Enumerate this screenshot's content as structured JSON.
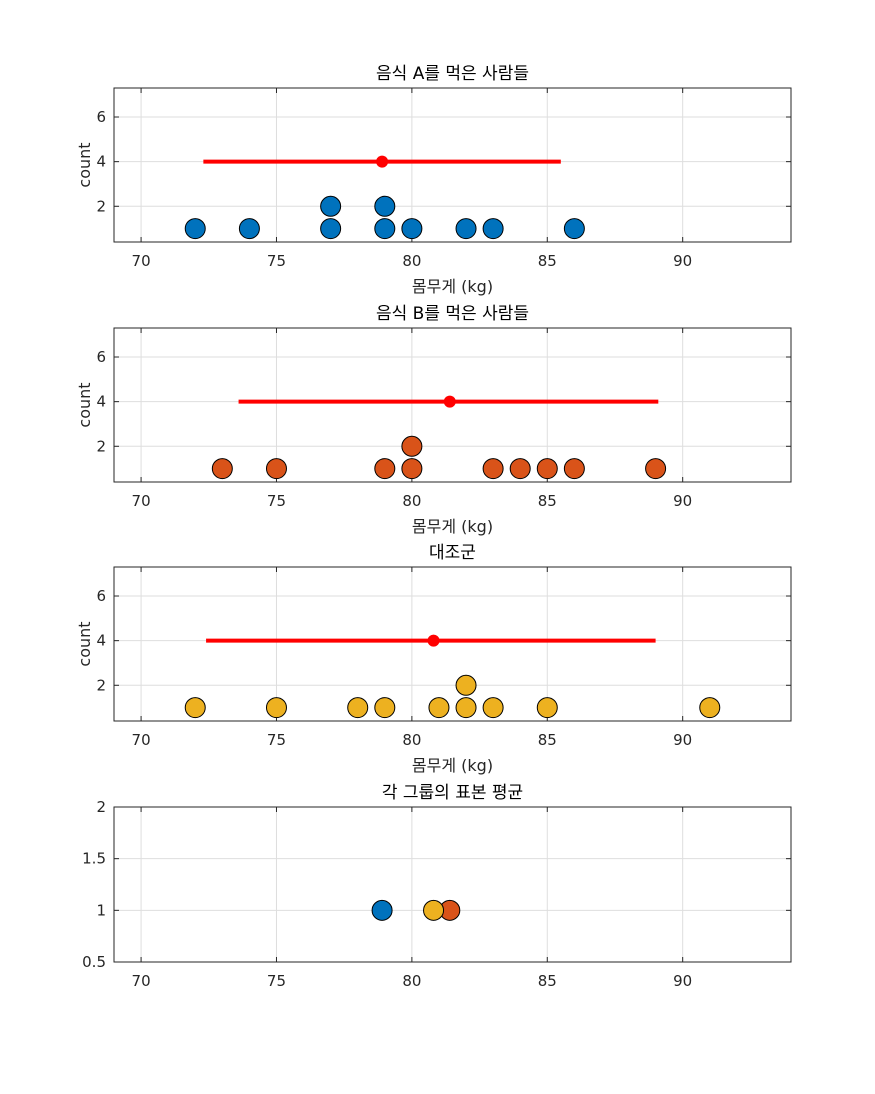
{
  "chart_data": [
    {
      "type": "scatter",
      "title": "음식 A를 먹은 사람들",
      "xlabel": "몸무게 (kg)",
      "ylabel": "count",
      "xlim": [
        69,
        94
      ],
      "ylim": [
        0.4,
        7.3
      ],
      "xticks": [
        70,
        75,
        80,
        85,
        90
      ],
      "yticks": [
        2,
        4,
        6
      ],
      "grid": true,
      "color": "#0072BD",
      "points": [
        {
          "x": 72,
          "y": 1
        },
        {
          "x": 74,
          "y": 1
        },
        {
          "x": 77,
          "y": 1
        },
        {
          "x": 77,
          "y": 2
        },
        {
          "x": 79,
          "y": 1
        },
        {
          "x": 79,
          "y": 2
        },
        {
          "x": 80,
          "y": 1
        },
        {
          "x": 82,
          "y": 1
        },
        {
          "x": 83,
          "y": 1
        },
        {
          "x": 86,
          "y": 1
        }
      ],
      "mean": 78.9,
      "interval": [
        72.3,
        85.5
      ],
      "interval_y": 4,
      "interval_color": "#FF0000"
    },
    {
      "type": "scatter",
      "title": "음식 B를 먹은 사람들",
      "xlabel": "몸무게 (kg)",
      "ylabel": "count",
      "xlim": [
        69,
        94
      ],
      "ylim": [
        0.4,
        7.3
      ],
      "xticks": [
        70,
        75,
        80,
        85,
        90
      ],
      "yticks": [
        2,
        4,
        6
      ],
      "grid": true,
      "color": "#D95319",
      "points": [
        {
          "x": 73,
          "y": 1
        },
        {
          "x": 75,
          "y": 1
        },
        {
          "x": 79,
          "y": 1
        },
        {
          "x": 80,
          "y": 1
        },
        {
          "x": 80,
          "y": 2
        },
        {
          "x": 83,
          "y": 1
        },
        {
          "x": 84,
          "y": 1
        },
        {
          "x": 85,
          "y": 1
        },
        {
          "x": 86,
          "y": 1
        },
        {
          "x": 89,
          "y": 1
        }
      ],
      "mean": 81.4,
      "interval": [
        73.6,
        89.1
      ],
      "interval_y": 4,
      "interval_color": "#FF0000"
    },
    {
      "type": "scatter",
      "title": "대조군",
      "xlabel": "몸무게 (kg)",
      "ylabel": "count",
      "xlim": [
        69,
        94
      ],
      "ylim": [
        0.4,
        7.3
      ],
      "xticks": [
        70,
        75,
        80,
        85,
        90
      ],
      "yticks": [
        2,
        4,
        6
      ],
      "grid": true,
      "color": "#EDB120",
      "points": [
        {
          "x": 72,
          "y": 1
        },
        {
          "x": 75,
          "y": 1
        },
        {
          "x": 78,
          "y": 1
        },
        {
          "x": 79,
          "y": 1
        },
        {
          "x": 81,
          "y": 1
        },
        {
          "x": 82,
          "y": 1
        },
        {
          "x": 82,
          "y": 2
        },
        {
          "x": 83,
          "y": 1
        },
        {
          "x": 85,
          "y": 1
        },
        {
          "x": 91,
          "y": 1
        }
      ],
      "mean": 80.8,
      "interval": [
        72.4,
        89.0
      ],
      "interval_y": 4,
      "interval_color": "#FF0000"
    },
    {
      "type": "scatter",
      "title": "각 그룹의 표본 평균",
      "xlabel": "",
      "ylabel": "",
      "xlim": [
        69,
        94
      ],
      "ylim": [
        0.5,
        2
      ],
      "xticks": [
        70,
        75,
        80,
        85,
        90
      ],
      "yticks": [
        0.5,
        1,
        1.5,
        2
      ],
      "grid": true,
      "points": [
        {
          "x": 78.9,
          "y": 1,
          "color": "#0072BD"
        },
        {
          "x": 81.4,
          "y": 1,
          "color": "#D95319"
        },
        {
          "x": 80.8,
          "y": 1,
          "color": "#EDB120"
        }
      ]
    }
  ]
}
